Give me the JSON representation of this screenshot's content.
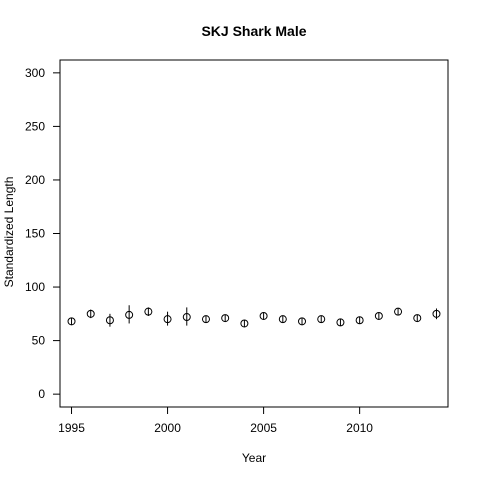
{
  "chart_data": {
    "type": "scatter",
    "title": "SKJ Shark Male",
    "xlabel": "Year",
    "ylabel": "Standardized Length",
    "xlim": [
      1994.4,
      2014.6
    ],
    "ylim": [
      -12,
      312
    ],
    "x_ticks": [
      1995,
      2000,
      2005,
      2010
    ],
    "y_ticks": [
      0,
      50,
      100,
      150,
      200,
      250,
      300
    ],
    "grid": false,
    "legend": "none",
    "series": [
      {
        "marker": "open-circle",
        "error_bars": "vertical",
        "points": [
          {
            "x": 1995,
            "y": 68,
            "lo": 65,
            "hi": 71
          },
          {
            "x": 1996,
            "y": 75,
            "lo": 71,
            "hi": 79
          },
          {
            "x": 1997,
            "y": 69,
            "lo": 63,
            "hi": 75
          },
          {
            "x": 1998,
            "y": 74,
            "lo": 66,
            "hi": 83
          },
          {
            "x": 1999,
            "y": 77,
            "lo": 73,
            "hi": 81
          },
          {
            "x": 2000,
            "y": 70,
            "lo": 64,
            "hi": 77
          },
          {
            "x": 2001,
            "y": 72,
            "lo": 64,
            "hi": 81
          },
          {
            "x": 2002,
            "y": 70,
            "lo": 67,
            "hi": 73
          },
          {
            "x": 2003,
            "y": 71,
            "lo": 68,
            "hi": 74
          },
          {
            "x": 2004,
            "y": 66,
            "lo": 63,
            "hi": 69
          },
          {
            "x": 2005,
            "y": 73,
            "lo": 70,
            "hi": 76
          },
          {
            "x": 2006,
            "y": 70,
            "lo": 67,
            "hi": 73
          },
          {
            "x": 2007,
            "y": 68,
            "lo": 65,
            "hi": 71
          },
          {
            "x": 2008,
            "y": 70,
            "lo": 67,
            "hi": 73
          },
          {
            "x": 2009,
            "y": 67,
            "lo": 64,
            "hi": 70
          },
          {
            "x": 2010,
            "y": 69,
            "lo": 66,
            "hi": 72
          },
          {
            "x": 2011,
            "y": 73,
            "lo": 70,
            "hi": 76
          },
          {
            "x": 2012,
            "y": 77,
            "lo": 74,
            "hi": 80
          },
          {
            "x": 2013,
            "y": 71,
            "lo": 68,
            "hi": 74
          },
          {
            "x": 2014,
            "y": 75,
            "lo": 70,
            "hi": 80
          }
        ]
      }
    ]
  }
}
